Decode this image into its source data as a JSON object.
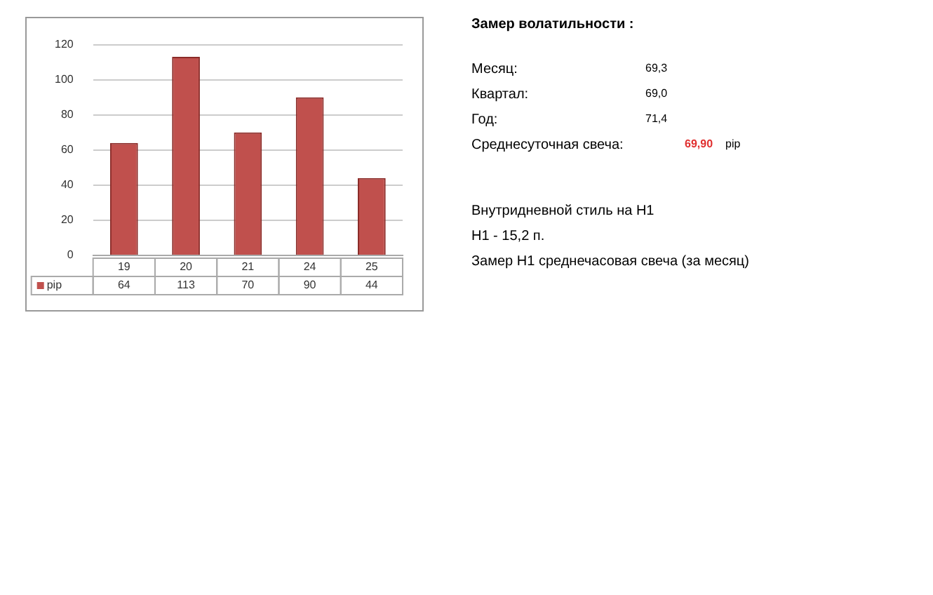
{
  "chart_data": {
    "type": "bar",
    "categories": [
      "19",
      "20",
      "21",
      "24",
      "25"
    ],
    "series": [
      {
        "name": "pip",
        "color": "#c0504d",
        "values": [
          64,
          113,
          70,
          90,
          44
        ]
      }
    ],
    "ylim": [
      0,
      120
    ],
    "yticks": [
      0,
      20,
      40,
      60,
      80,
      100,
      120
    ],
    "grid": "y",
    "data_labels": true,
    "legend": "bottom left",
    "annotations": [
      "Замер  волатильности  :",
      "Месяц:",
      "69,3",
      "Квартал:",
      "69,0",
      "Год:",
      "71,4",
      "Среднесуточная свеча:",
      "69,90",
      "pip",
      "Внутридневной стиль на H1",
      "H1 - 15,2 п.",
      "Замер H1 среднечасовая свеча (за месяц)"
    ]
  }
}
